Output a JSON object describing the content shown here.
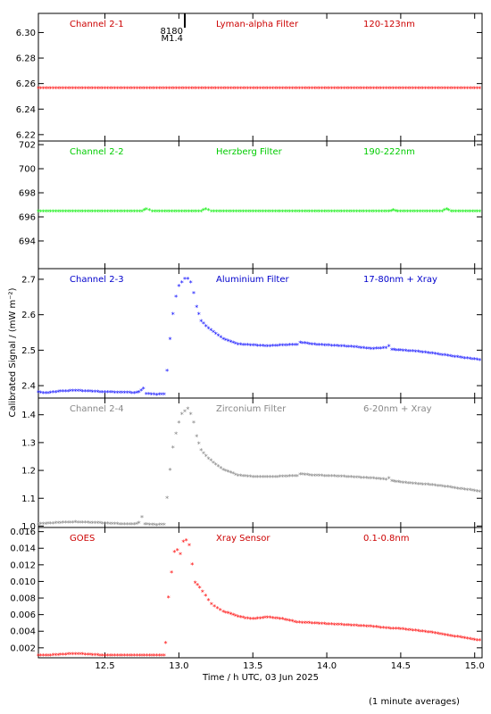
{
  "figure": {
    "xlabel": "Time / h UTC, 03 Jun 2025",
    "ylabel": "Calibrated Signal / (mW m⁻²)",
    "footer_note": "(1 minute averages)",
    "flare_marker": {
      "x": 13.04,
      "label_top": "8180",
      "label_bottom": "M1.4"
    }
  },
  "chart_data": [
    {
      "type": "scatter",
      "labels": [
        "Channel 2-1",
        "Lyman-alpha Filter",
        "120-123nm"
      ],
      "label_color": "#cc0000",
      "marker_color": "#ff0000",
      "xlim": [
        12.05,
        15.05
      ],
      "ylim": [
        6.215,
        6.315
      ],
      "xticks": [
        12.5,
        13.0,
        13.5,
        14.0,
        14.5,
        15.0
      ],
      "yticks": [
        "6.22",
        "6.24",
        "6.26",
        "6.28",
        "6.30"
      ],
      "points": [
        [
          12.05,
          6.256
        ],
        [
          12.5,
          6.256
        ],
        [
          13.0,
          6.256
        ],
        [
          13.5,
          6.256
        ],
        [
          14.0,
          6.256
        ],
        [
          14.5,
          6.256
        ],
        [
          15.05,
          6.256
        ]
      ]
    },
    {
      "type": "scatter",
      "labels": [
        "Channel 2-2",
        "Herzberg Filter",
        "190-222nm"
      ],
      "label_color": "#00cc00",
      "marker_color": "#00ee00",
      "xlim": [
        12.05,
        15.05
      ],
      "ylim": [
        691.7,
        702.3
      ],
      "xticks": [
        12.5,
        13.0,
        13.5,
        14.0,
        14.5,
        15.0
      ],
      "yticks": [
        "694",
        "696",
        "698",
        "700",
        "702"
      ],
      "points": [
        [
          12.05,
          696.4
        ],
        [
          12.75,
          696.4
        ],
        [
          12.78,
          696.6
        ],
        [
          12.82,
          696.4
        ],
        [
          13.15,
          696.4
        ],
        [
          13.18,
          696.6
        ],
        [
          13.22,
          696.4
        ],
        [
          14.0,
          696.4
        ],
        [
          14.42,
          696.4
        ],
        [
          14.45,
          696.5
        ],
        [
          14.48,
          696.4
        ],
        [
          14.78,
          696.4
        ],
        [
          14.81,
          696.6
        ],
        [
          14.84,
          696.4
        ],
        [
          15.05,
          696.4
        ]
      ]
    },
    {
      "type": "scatter",
      "labels": [
        "Channel 2-3",
        "Aluminium Filter",
        "17-80nm + Xray"
      ],
      "label_color": "#0000cc",
      "marker_color": "#0000ff",
      "xlim": [
        12.05,
        15.05
      ],
      "ylim": [
        2.365,
        2.73
      ],
      "xticks": [
        12.5,
        13.0,
        13.5,
        14.0,
        14.5,
        15.0
      ],
      "yticks": [
        "2.4",
        "2.5",
        "2.6",
        "2.7"
      ],
      "points": [
        [
          12.05,
          2.38
        ],
        [
          12.1,
          2.377
        ],
        [
          12.15,
          2.38
        ],
        [
          12.2,
          2.382
        ],
        [
          12.3,
          2.384
        ],
        [
          12.4,
          2.382
        ],
        [
          12.5,
          2.38
        ],
        [
          12.6,
          2.379
        ],
        [
          12.7,
          2.378
        ],
        [
          12.73,
          2.38
        ],
        [
          12.76,
          2.39
        ],
        [
          12.78,
          2.375
        ],
        [
          12.85,
          2.373
        ],
        [
          12.9,
          2.374
        ],
        [
          12.92,
          2.44
        ],
        [
          12.94,
          2.53
        ],
        [
          12.96,
          2.6
        ],
        [
          12.98,
          2.65
        ],
        [
          13.0,
          2.68
        ],
        [
          13.02,
          2.69
        ],
        [
          13.04,
          2.7
        ],
        [
          13.06,
          2.7
        ],
        [
          13.08,
          2.69
        ],
        [
          13.1,
          2.66
        ],
        [
          13.12,
          2.62
        ],
        [
          13.15,
          2.58
        ],
        [
          13.2,
          2.56
        ],
        [
          13.3,
          2.53
        ],
        [
          13.4,
          2.515
        ],
        [
          13.5,
          2.512
        ],
        [
          13.6,
          2.51
        ],
        [
          13.7,
          2.512
        ],
        [
          13.8,
          2.514
        ],
        [
          13.82,
          2.52
        ],
        [
          13.9,
          2.515
        ],
        [
          14.0,
          2.512
        ],
        [
          14.1,
          2.51
        ],
        [
          14.2,
          2.507
        ],
        [
          14.3,
          2.502
        ],
        [
          14.4,
          2.505
        ],
        [
          14.42,
          2.51
        ],
        [
          14.44,
          2.5
        ],
        [
          14.5,
          2.498
        ],
        [
          14.6,
          2.495
        ],
        [
          14.7,
          2.49
        ],
        [
          14.8,
          2.484
        ],
        [
          14.9,
          2.478
        ],
        [
          15.0,
          2.473
        ],
        [
          15.05,
          2.47
        ]
      ]
    },
    {
      "type": "scatter",
      "labels": [
        "Channel 2-4",
        "Zirconium Filter",
        "6-20nm + Xray"
      ],
      "label_color": "#888888",
      "marker_color": "#808080",
      "xlim": [
        12.05,
        15.05
      ],
      "ylim": [
        0.995,
        1.46
      ],
      "xticks": [
        12.5,
        13.0,
        13.5,
        14.0,
        14.5,
        15.0
      ],
      "yticks": [
        "1.0",
        "1.1",
        "1.2",
        "1.3",
        "1.4"
      ],
      "points": [
        [
          12.05,
          1.005
        ],
        [
          12.1,
          1.007
        ],
        [
          12.2,
          1.01
        ],
        [
          12.3,
          1.012
        ],
        [
          12.4,
          1.01
        ],
        [
          12.5,
          1.008
        ],
        [
          12.6,
          1.005
        ],
        [
          12.7,
          1.004
        ],
        [
          12.73,
          1.01
        ],
        [
          12.75,
          1.03
        ],
        [
          12.77,
          1.005
        ],
        [
          12.85,
          1.002
        ],
        [
          12.9,
          1.003
        ],
        [
          12.92,
          1.1
        ],
        [
          12.94,
          1.2
        ],
        [
          12.96,
          1.28
        ],
        [
          12.98,
          1.33
        ],
        [
          13.0,
          1.37
        ],
        [
          13.02,
          1.4
        ],
        [
          13.04,
          1.41
        ],
        [
          13.06,
          1.42
        ],
        [
          13.08,
          1.4
        ],
        [
          13.1,
          1.37
        ],
        [
          13.12,
          1.32
        ],
        [
          13.15,
          1.27
        ],
        [
          13.2,
          1.24
        ],
        [
          13.3,
          1.2
        ],
        [
          13.4,
          1.18
        ],
        [
          13.5,
          1.175
        ],
        [
          13.6,
          1.174
        ],
        [
          13.7,
          1.176
        ],
        [
          13.8,
          1.178
        ],
        [
          13.82,
          1.185
        ],
        [
          13.9,
          1.18
        ],
        [
          14.0,
          1.178
        ],
        [
          14.1,
          1.176
        ],
        [
          14.2,
          1.173
        ],
        [
          14.3,
          1.17
        ],
        [
          14.4,
          1.165
        ],
        [
          14.42,
          1.17
        ],
        [
          14.44,
          1.16
        ],
        [
          14.5,
          1.155
        ],
        [
          14.6,
          1.15
        ],
        [
          14.7,
          1.146
        ],
        [
          14.8,
          1.14
        ],
        [
          14.9,
          1.132
        ],
        [
          15.0,
          1.125
        ],
        [
          15.05,
          1.12
        ]
      ]
    },
    {
      "type": "scatter",
      "labels": [
        "GOES",
        "Xray Sensor",
        "0.1-0.8nm"
      ],
      "label_color": "#cc0000",
      "marker_color": "#ff0000",
      "xlim": [
        12.05,
        15.05
      ],
      "ylim": [
        0.0008,
        0.0165
      ],
      "xticks": [
        12.5,
        13.0,
        13.5,
        14.0,
        14.5,
        15.0
      ],
      "yticks": [
        "0.002",
        "0.004",
        "0.006",
        "0.008",
        "0.010",
        "0.012",
        "0.014",
        "0.016"
      ],
      "points": [
        [
          12.05,
          0.001
        ],
        [
          12.1,
          0.001
        ],
        [
          12.2,
          0.0011
        ],
        [
          12.3,
          0.0012
        ],
        [
          12.4,
          0.0011
        ],
        [
          12.5,
          0.001
        ],
        [
          12.6,
          0.001
        ],
        [
          12.7,
          0.001
        ],
        [
          12.8,
          0.001
        ],
        [
          12.9,
          0.001
        ],
        [
          12.91,
          0.0025
        ],
        [
          12.93,
          0.008
        ],
        [
          12.95,
          0.011
        ],
        [
          12.97,
          0.0135
        ],
        [
          12.99,
          0.0137
        ],
        [
          13.01,
          0.0132
        ],
        [
          13.03,
          0.0147
        ],
        [
          13.05,
          0.0149
        ],
        [
          13.07,
          0.0143
        ],
        [
          13.09,
          0.012
        ],
        [
          13.11,
          0.0098
        ],
        [
          13.14,
          0.0092
        ],
        [
          13.18,
          0.0082
        ],
        [
          13.22,
          0.0072
        ],
        [
          13.26,
          0.0067
        ],
        [
          13.3,
          0.0063
        ],
        [
          13.35,
          0.006
        ],
        [
          13.4,
          0.0057
        ],
        [
          13.45,
          0.0055
        ],
        [
          13.5,
          0.0054
        ],
        [
          13.55,
          0.0055
        ],
        [
          13.6,
          0.0056
        ],
        [
          13.65,
          0.0055
        ],
        [
          13.7,
          0.0054
        ],
        [
          13.8,
          0.005
        ],
        [
          13.9,
          0.0049
        ],
        [
          14.0,
          0.0048
        ],
        [
          14.1,
          0.0047
        ],
        [
          14.2,
          0.0046
        ],
        [
          14.3,
          0.0045
        ],
        [
          14.4,
          0.0043
        ],
        [
          14.5,
          0.0042
        ],
        [
          14.6,
          0.004
        ],
        [
          14.7,
          0.0038
        ],
        [
          14.8,
          0.0035
        ],
        [
          14.9,
          0.0032
        ],
        [
          15.0,
          0.0029
        ],
        [
          15.05,
          0.0028
        ]
      ]
    }
  ]
}
